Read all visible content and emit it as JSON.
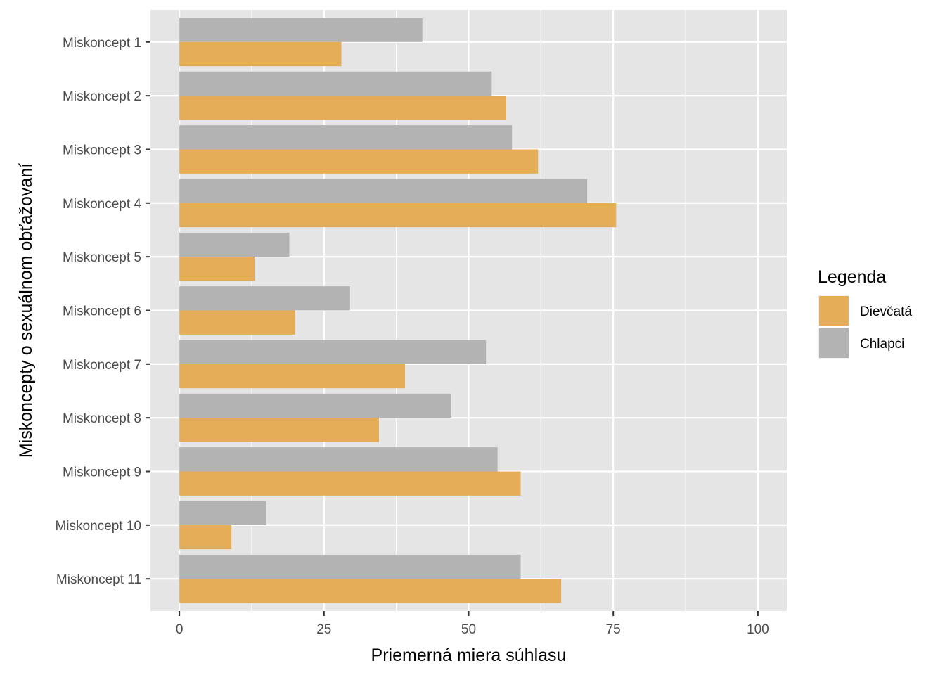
{
  "chart_data": {
    "type": "bar",
    "orientation": "horizontal",
    "categories": [
      "Miskoncept 1",
      "Miskoncept 2",
      "Miskoncept 3",
      "Miskoncept 4",
      "Miskoncept 5",
      "Miskoncept 6",
      "Miskoncept 7",
      "Miskoncept 8",
      "Miskoncept 9",
      "Miskoncept 10",
      "Miskoncept 11"
    ],
    "series": [
      {
        "name": "Chlapci",
        "color": "#b3b3b3",
        "values": [
          42,
          54,
          57.5,
          70.5,
          19,
          29.5,
          53,
          47,
          55,
          15,
          59
        ]
      },
      {
        "name": "Dievčatá",
        "color": "#e5ad57",
        "values": [
          28,
          56.5,
          62,
          75.5,
          13,
          20,
          39,
          34.5,
          59,
          9,
          66
        ]
      }
    ],
    "xlabel": "Priemerná miera súhlasu",
    "ylabel": "Miskoncepty o sexuálnom obťažovaní",
    "xlim": [
      -5,
      105
    ],
    "x_ticks": [
      0,
      25,
      50,
      75,
      100
    ],
    "x_tick_labels": [
      "0",
      "25",
      "50",
      "75",
      "100"
    ],
    "grid": true,
    "legend": {
      "title": "Legenda",
      "position": "right",
      "entries": [
        {
          "label": "Dievčatá",
          "color": "#e5ad57"
        },
        {
          "label": "Chlapci",
          "color": "#b3b3b3"
        }
      ]
    },
    "panel_background": "#e5e5e5",
    "grid_color": "#ffffff"
  }
}
